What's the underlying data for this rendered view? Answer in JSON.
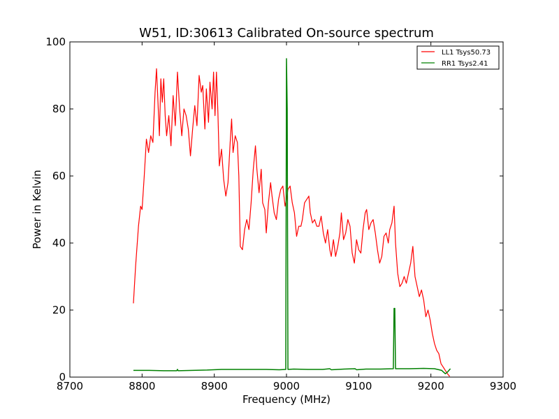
{
  "chart_data": {
    "type": "line",
    "title": "W51, ID:30613 Calibrated On-source spectrum",
    "xlabel": "Frequency (MHz)",
    "ylabel": "Power in Kelvin",
    "xlim": [
      8700,
      9300
    ],
    "ylim": [
      0,
      100
    ],
    "xticks": [
      "8700",
      "8800",
      "8900",
      "9000",
      "9100",
      "9200",
      "9300"
    ],
    "yticks": [
      "0",
      "20",
      "40",
      "60",
      "80",
      "100"
    ],
    "grid": false,
    "legend_position": "top-right",
    "series": [
      {
        "name": "LL1 Tsys50.73",
        "color": "#ff0000",
        "points": [
          [
            8788,
            22
          ],
          [
            8791,
            33
          ],
          [
            8795,
            45
          ],
          [
            8798,
            51
          ],
          [
            8800,
            50
          ],
          [
            8803,
            60
          ],
          [
            8806,
            71
          ],
          [
            8809,
            67
          ],
          [
            8812,
            72
          ],
          [
            8815,
            70
          ],
          [
            8818,
            85
          ],
          [
            8820,
            92
          ],
          [
            8822,
            82
          ],
          [
            8824,
            72
          ],
          [
            8826,
            89
          ],
          [
            8828,
            82
          ],
          [
            8830,
            89
          ],
          [
            8832,
            78
          ],
          [
            8834,
            72
          ],
          [
            8837,
            78
          ],
          [
            8840,
            69
          ],
          [
            8843,
            84
          ],
          [
            8846,
            75
          ],
          [
            8849,
            91
          ],
          [
            8852,
            80
          ],
          [
            8855,
            72
          ],
          [
            8858,
            80
          ],
          [
            8861,
            78
          ],
          [
            8864,
            74
          ],
          [
            8867,
            66
          ],
          [
            8870,
            74
          ],
          [
            8873,
            81
          ],
          [
            8876,
            75
          ],
          [
            8879,
            90
          ],
          [
            8882,
            85
          ],
          [
            8884,
            87
          ],
          [
            8887,
            74
          ],
          [
            8889,
            86
          ],
          [
            8892,
            76
          ],
          [
            8894,
            88
          ],
          [
            8897,
            80
          ],
          [
            8899,
            91
          ],
          [
            8901,
            78
          ],
          [
            8903,
            91
          ],
          [
            8905,
            79
          ],
          [
            8907,
            63
          ],
          [
            8910,
            68
          ],
          [
            8913,
            59
          ],
          [
            8916,
            54
          ],
          [
            8919,
            58
          ],
          [
            8922,
            70
          ],
          [
            8924,
            77
          ],
          [
            8926,
            67
          ],
          [
            8929,
            72
          ],
          [
            8932,
            70
          ],
          [
            8934,
            60
          ],
          [
            8936,
            39
          ],
          [
            8939,
            38
          ],
          [
            8942,
            44
          ],
          [
            8945,
            47
          ],
          [
            8948,
            44
          ],
          [
            8951,
            52
          ],
          [
            8954,
            62
          ],
          [
            8957,
            69
          ],
          [
            8959,
            62
          ],
          [
            8962,
            55
          ],
          [
            8965,
            62
          ],
          [
            8967,
            52
          ],
          [
            8970,
            50
          ],
          [
            8972,
            43
          ],
          [
            8975,
            52
          ],
          [
            8978,
            58
          ],
          [
            8980,
            54
          ],
          [
            8983,
            49
          ],
          [
            8986,
            47
          ],
          [
            8989,
            53
          ],
          [
            8992,
            56
          ],
          [
            8995,
            57
          ],
          [
            8998,
            51
          ],
          [
            9000,
            53
          ],
          [
            9002,
            56
          ],
          [
            9005,
            57
          ],
          [
            9008,
            52
          ],
          [
            9011,
            49
          ],
          [
            9014,
            42
          ],
          [
            9017,
            45
          ],
          [
            9020,
            45
          ],
          [
            9022,
            47
          ],
          [
            9025,
            52
          ],
          [
            9028,
            53
          ],
          [
            9031,
            54
          ],
          [
            9033,
            49
          ],
          [
            9036,
            46
          ],
          [
            9039,
            47
          ],
          [
            9042,
            45
          ],
          [
            9045,
            45
          ],
          [
            9048,
            48
          ],
          [
            9051,
            43
          ],
          [
            9054,
            40
          ],
          [
            9057,
            44
          ],
          [
            9060,
            38
          ],
          [
            9062,
            36
          ],
          [
            9065,
            41
          ],
          [
            9068,
            36
          ],
          [
            9071,
            39
          ],
          [
            9074,
            43
          ],
          [
            9076,
            49
          ],
          [
            9079,
            41
          ],
          [
            9082,
            43
          ],
          [
            9085,
            47
          ],
          [
            9088,
            45
          ],
          [
            9091,
            37
          ],
          [
            9094,
            34
          ],
          [
            9097,
            41
          ],
          [
            9100,
            38
          ],
          [
            9103,
            37
          ],
          [
            9106,
            44
          ],
          [
            9109,
            49
          ],
          [
            9111,
            50
          ],
          [
            9114,
            44
          ],
          [
            9117,
            46
          ],
          [
            9120,
            47
          ],
          [
            9123,
            43
          ],
          [
            9126,
            38
          ],
          [
            9129,
            34
          ],
          [
            9132,
            36
          ],
          [
            9135,
            42
          ],
          [
            9138,
            43
          ],
          [
            9141,
            40
          ],
          [
            9143,
            44
          ],
          [
            9146,
            46
          ],
          [
            9149,
            51
          ],
          [
            9151,
            40
          ],
          [
            9154,
            31
          ],
          [
            9157,
            27
          ],
          [
            9160,
            28
          ],
          [
            9163,
            30
          ],
          [
            9166,
            28
          ],
          [
            9169,
            31
          ],
          [
            9172,
            34
          ],
          [
            9175,
            39
          ],
          [
            9178,
            30
          ],
          [
            9181,
            27
          ],
          [
            9184,
            24
          ],
          [
            9187,
            26
          ],
          [
            9190,
            23
          ],
          [
            9193,
            18
          ],
          [
            9196,
            20
          ],
          [
            9199,
            17
          ],
          [
            9202,
            13
          ],
          [
            9205,
            10
          ],
          [
            9208,
            8
          ],
          [
            9211,
            7
          ],
          [
            9214,
            4
          ],
          [
            9217,
            3
          ],
          [
            9220,
            2
          ],
          [
            9223,
            1
          ],
          [
            9226,
            0.2
          ]
        ]
      },
      {
        "name": "RR1 Tsys2.41",
        "color": "#008000",
        "points": [
          [
            8788,
            2.0
          ],
          [
            8810,
            2.0
          ],
          [
            8830,
            1.9
          ],
          [
            8848,
            1.9
          ],
          [
            8849,
            2.3
          ],
          [
            8850,
            1.9
          ],
          [
            8870,
            2.0
          ],
          [
            8890,
            2.1
          ],
          [
            8910,
            2.3
          ],
          [
            8930,
            2.3
          ],
          [
            8950,
            2.3
          ],
          [
            8970,
            2.3
          ],
          [
            8990,
            2.2
          ],
          [
            8999,
            2.3
          ],
          [
            9000,
            95
          ],
          [
            9001,
            80
          ],
          [
            9002,
            2.3
          ],
          [
            9010,
            2.4
          ],
          [
            9030,
            2.3
          ],
          [
            9050,
            2.3
          ],
          [
            9060,
            2.5
          ],
          [
            9062,
            2.2
          ],
          [
            9080,
            2.4
          ],
          [
            9095,
            2.5
          ],
          [
            9097,
            2.2
          ],
          [
            9110,
            2.4
          ],
          [
            9130,
            2.4
          ],
          [
            9148,
            2.5
          ],
          [
            9149,
            20.5
          ],
          [
            9150,
            20.5
          ],
          [
            9151,
            2.5
          ],
          [
            9170,
            2.5
          ],
          [
            9190,
            2.6
          ],
          [
            9205,
            2.5
          ],
          [
            9215,
            2.0
          ],
          [
            9220,
            1.0
          ],
          [
            9223,
            1.5
          ],
          [
            9227,
            2.5
          ]
        ]
      }
    ]
  }
}
